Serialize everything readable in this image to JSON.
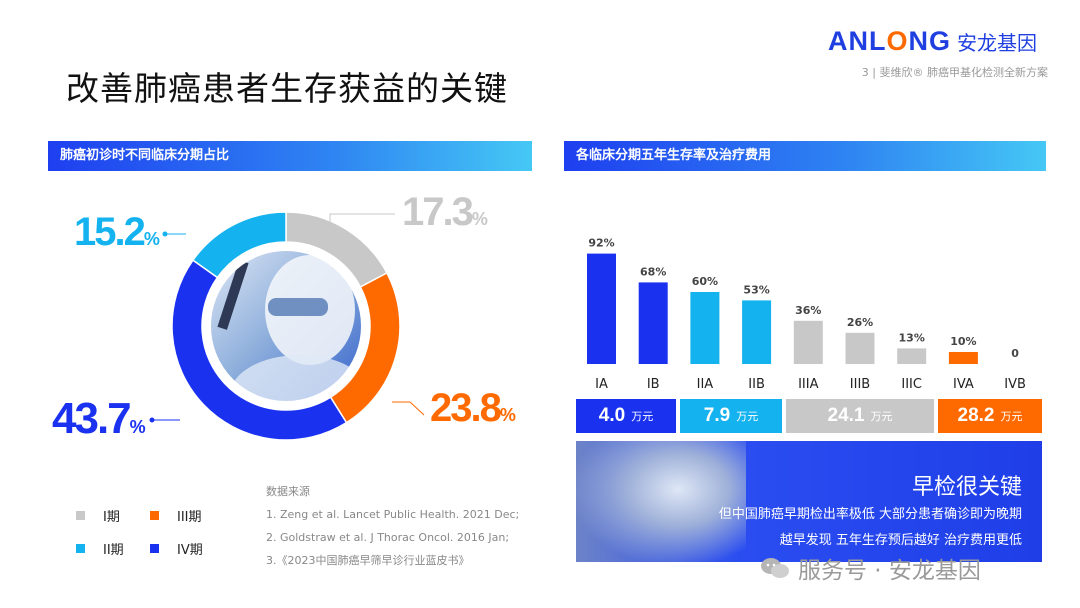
{
  "header": {
    "brand": "ANLONG",
    "brand_cn": "安龙基因",
    "subheader": "3 | 斐维欣® 肺癌甲基化检测全新方案",
    "title": "改善肺癌患者生存获益的关键"
  },
  "left_panel": {
    "title": "肺癌初诊时不同临床分期占比",
    "unit": "%",
    "legend": [
      {
        "label": "I期",
        "color": "#c8c8c8"
      },
      {
        "label": "III期",
        "color": "#ff6a00"
      },
      {
        "label": "II期",
        "color": "#14b2ef"
      },
      {
        "label": "IV期",
        "color": "#1a32f0"
      }
    ],
    "sources_title": "数据来源",
    "sources": [
      "1.   Zeng et al.  Lancet Public Health. 2021 Dec;",
      "2.   Goldstraw et al. J Thorac Oncol. 2016 Jan;",
      "3.《2023中国肺癌早筛早诊行业蓝皮书》"
    ]
  },
  "right_panel": {
    "title": "各临床分期五年生存率及治疗费用",
    "costs": [
      {
        "value": "4.0",
        "unit": "万元",
        "color": "#1a32f0"
      },
      {
        "value": "7.9",
        "unit": "万元",
        "color": "#14b2ef"
      },
      {
        "value": "24.1",
        "unit": "万元",
        "color": "#c8c8c8"
      },
      {
        "value": "28.2",
        "unit": "万元",
        "color": "#ff6a00"
      }
    ],
    "banner": {
      "title": "早检很关键",
      "line1": "但中国肺癌早期检出率极低 大部分患者确诊即为晚期",
      "line2": "越早发现 五年生存预后越好 治疗费用更低"
    }
  },
  "watermark": "服务号 · 安龙基因",
  "chart_data": [
    {
      "type": "pie",
      "title": "肺癌初诊时不同临床分期占比",
      "labels": [
        "I期",
        "III期",
        "IV期",
        "II期"
      ],
      "values": [
        17.3,
        23.8,
        43.7,
        15.2
      ],
      "colors": [
        "#c8c8c8",
        "#ff6a00",
        "#1a32f0",
        "#14b2ef"
      ]
    },
    {
      "type": "bar",
      "title": "各临床分期五年生存率及治疗费用",
      "categories": [
        "IA",
        "IB",
        "IIA",
        "IIB",
        "IIIA",
        "IIIB",
        "IIIC",
        "IVA",
        "IVB"
      ],
      "values": [
        92,
        68,
        60,
        53,
        36,
        26,
        13,
        10,
        0
      ],
      "labels": [
        "92%",
        "68%",
        "60%",
        "53%",
        "36%",
        "26%",
        "13%",
        "10%",
        "0"
      ],
      "colors": [
        "#1a32f0",
        "#1a32f0",
        "#14b2ef",
        "#14b2ef",
        "#c8c8c8",
        "#c8c8c8",
        "#c8c8c8",
        "#ff6a00",
        "#c8c8c8"
      ],
      "ylim": [
        0,
        100
      ],
      "grid": false
    }
  ]
}
